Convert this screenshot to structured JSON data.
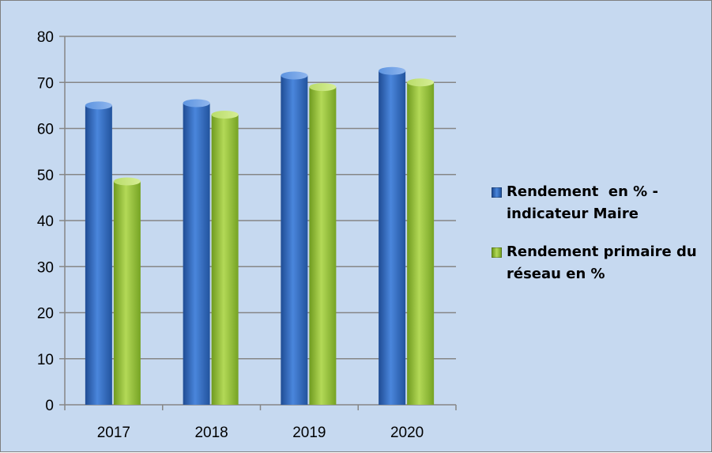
{
  "chart_data": {
    "type": "bar",
    "categories": [
      "2017",
      "2018",
      "2019",
      "2020"
    ],
    "series": [
      {
        "name": "Rendement  en % -\nindicateur Maire",
        "values": [
          65,
          65.5,
          71.5,
          72.5
        ],
        "color": "#3a6fc4"
      },
      {
        "name": "Rendement primaire du\nréseau en %",
        "values": [
          48.5,
          63,
          69,
          70
        ],
        "color": "#9bc13b"
      }
    ],
    "ylim": [
      0,
      80
    ],
    "yticks": [
      "0",
      "10",
      "20",
      "30",
      "40",
      "50",
      "60",
      "70",
      "80"
    ],
    "grid": true,
    "legend_position": "right",
    "title": "",
    "xlabel": "",
    "ylabel": ""
  }
}
